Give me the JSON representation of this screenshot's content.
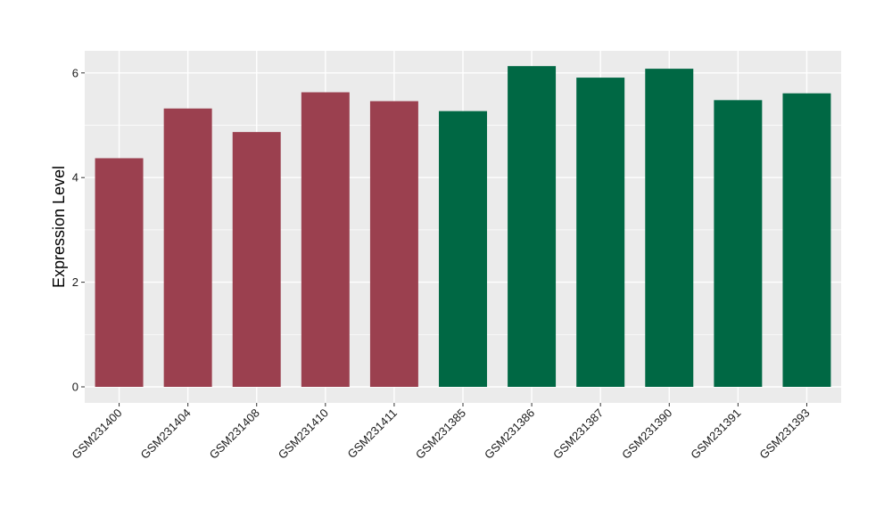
{
  "chart_data": {
    "type": "bar",
    "title": "",
    "xlabel": "",
    "ylabel": "Expression Level",
    "ylim": [
      0,
      6.3
    ],
    "yticks": [
      0,
      2,
      4,
      6
    ],
    "grid": true,
    "categories": [
      "GSM231400",
      "GSM231404",
      "GSM231408",
      "GSM231410",
      "GSM231411",
      "GSM231385",
      "GSM231386",
      "GSM231387",
      "GSM231390",
      "GSM231391",
      "GSM231393"
    ],
    "values": [
      4.37,
      5.32,
      4.87,
      5.63,
      5.46,
      5.27,
      6.13,
      5.91,
      6.08,
      5.48,
      5.61
    ],
    "bar_colors": [
      "#9b404f",
      "#9b404f",
      "#9b404f",
      "#9b404f",
      "#9b404f",
      "#006844",
      "#006844",
      "#006844",
      "#006844",
      "#006844",
      "#006844"
    ],
    "panel_background": "#ebebeb",
    "gridline_color": "#ffffff"
  }
}
